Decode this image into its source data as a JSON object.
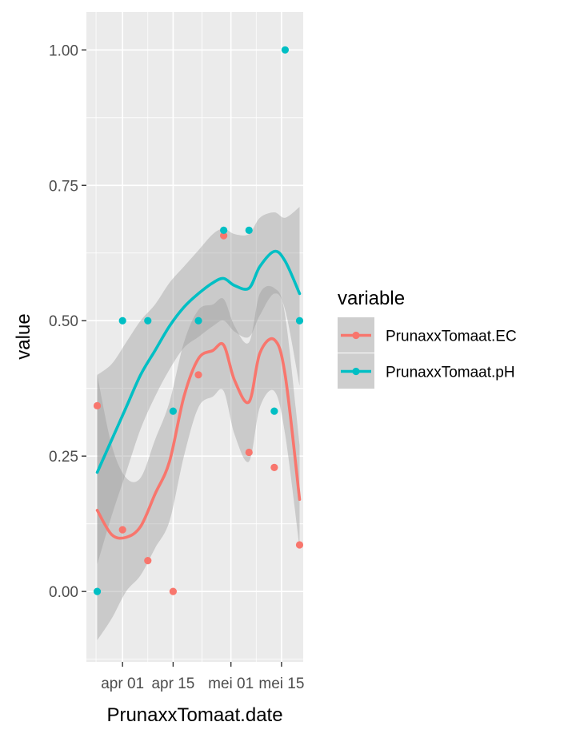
{
  "chart_data": {
    "type": "scatter",
    "xlabel": "PrunaxxTomaat.date",
    "ylabel": "value",
    "ylim": [
      -0.13,
      1.07
    ],
    "xlim": [
      "2025-03-22",
      "2025-05-21"
    ],
    "x_ticks": [
      {
        "date": "2025-04-01",
        "label": "apr 01"
      },
      {
        "date": "2025-04-15",
        "label": "apr 15"
      },
      {
        "date": "2025-05-01",
        "label": "mei 01"
      },
      {
        "date": "2025-05-15",
        "label": "mei 15"
      }
    ],
    "y_ticks": [
      {
        "value": 0.0,
        "label": "0.00"
      },
      {
        "value": 0.25,
        "label": "0.25"
      },
      {
        "value": 0.5,
        "label": "0.50"
      },
      {
        "value": 0.75,
        "label": "0.75"
      },
      {
        "value": 1.0,
        "label": "1.00"
      }
    ],
    "grid": true,
    "legend": {
      "title": "variable",
      "position": "right"
    },
    "series": [
      {
        "name": "PrunaxxTomaat.EC",
        "color": "#F8766D",
        "points": [
          {
            "date": "2025-03-25",
            "value": 0.343
          },
          {
            "date": "2025-04-01",
            "value": 0.114
          },
          {
            "date": "2025-04-08",
            "value": 0.057
          },
          {
            "date": "2025-04-15",
            "value": 0.0
          },
          {
            "date": "2025-04-22",
            "value": 0.4
          },
          {
            "date": "2025-04-29",
            "value": 0.657
          },
          {
            "date": "2025-05-06",
            "value": 0.257
          },
          {
            "date": "2025-05-13",
            "value": 0.229
          },
          {
            "date": "2025-05-20",
            "value": 0.086
          }
        ],
        "smooth": [
          {
            "date": "2025-03-25",
            "value": 0.15,
            "lower": -0.09,
            "upper": 0.4
          },
          {
            "date": "2025-03-29",
            "value": 0.105,
            "lower": -0.05,
            "upper": 0.27
          },
          {
            "date": "2025-04-02",
            "value": 0.1,
            "lower": 0.0,
            "upper": 0.21
          },
          {
            "date": "2025-04-06",
            "value": 0.12,
            "lower": 0.03,
            "upper": 0.21
          },
          {
            "date": "2025-04-10",
            "value": 0.18,
            "lower": 0.08,
            "upper": 0.28
          },
          {
            "date": "2025-04-14",
            "value": 0.24,
            "lower": 0.13,
            "upper": 0.35
          },
          {
            "date": "2025-04-18",
            "value": 0.36,
            "lower": 0.25,
            "upper": 0.46
          },
          {
            "date": "2025-04-22",
            "value": 0.43,
            "lower": 0.34,
            "upper": 0.52
          },
          {
            "date": "2025-04-26",
            "value": 0.445,
            "lower": 0.36,
            "upper": 0.53
          },
          {
            "date": "2025-04-29",
            "value": 0.455,
            "lower": 0.37,
            "upper": 0.54
          },
          {
            "date": "2025-05-02",
            "value": 0.39,
            "lower": 0.29,
            "upper": 0.49
          },
          {
            "date": "2025-05-06",
            "value": 0.35,
            "lower": 0.24,
            "upper": 0.46
          },
          {
            "date": "2025-05-09",
            "value": 0.44,
            "lower": 0.34,
            "upper": 0.55
          },
          {
            "date": "2025-05-13",
            "value": 0.465,
            "lower": 0.37,
            "upper": 0.56
          },
          {
            "date": "2025-05-16",
            "value": 0.4,
            "lower": 0.29,
            "upper": 0.51
          },
          {
            "date": "2025-05-20",
            "value": 0.17,
            "lower": 0.08,
            "upper": 0.27
          }
        ]
      },
      {
        "name": "PrunaxxTomaat.pH",
        "color": "#00BFC4",
        "points": [
          {
            "date": "2025-03-25",
            "value": 0.0
          },
          {
            "date": "2025-04-01",
            "value": 0.5
          },
          {
            "date": "2025-04-08",
            "value": 0.5
          },
          {
            "date": "2025-04-15",
            "value": 0.333
          },
          {
            "date": "2025-04-22",
            "value": 0.5
          },
          {
            "date": "2025-04-29",
            "value": 0.667
          },
          {
            "date": "2025-05-06",
            "value": 0.667
          },
          {
            "date": "2025-05-13",
            "value": 0.333
          },
          {
            "date": "2025-05-16",
            "value": 1.0
          },
          {
            "date": "2025-05-20",
            "value": 0.5
          }
        ],
        "smooth": [
          {
            "date": "2025-03-25",
            "value": 0.22,
            "lower": 0.05,
            "upper": 0.4
          },
          {
            "date": "2025-03-29",
            "value": 0.28,
            "lower": 0.14,
            "upper": 0.42
          },
          {
            "date": "2025-04-02",
            "value": 0.34,
            "lower": 0.22,
            "upper": 0.46
          },
          {
            "date": "2025-04-06",
            "value": 0.4,
            "lower": 0.3,
            "upper": 0.5
          },
          {
            "date": "2025-04-10",
            "value": 0.445,
            "lower": 0.36,
            "upper": 0.53
          },
          {
            "date": "2025-04-14",
            "value": 0.49,
            "lower": 0.41,
            "upper": 0.57
          },
          {
            "date": "2025-04-18",
            "value": 0.525,
            "lower": 0.45,
            "upper": 0.6
          },
          {
            "date": "2025-04-22",
            "value": 0.55,
            "lower": 0.47,
            "upper": 0.63
          },
          {
            "date": "2025-04-26",
            "value": 0.57,
            "lower": 0.49,
            "upper": 0.66
          },
          {
            "date": "2025-04-29",
            "value": 0.578,
            "lower": 0.5,
            "upper": 0.67
          },
          {
            "date": "2025-05-02",
            "value": 0.565,
            "lower": 0.48,
            "upper": 0.66
          },
          {
            "date": "2025-05-06",
            "value": 0.56,
            "lower": 0.47,
            "upper": 0.66
          },
          {
            "date": "2025-05-09",
            "value": 0.6,
            "lower": 0.51,
            "upper": 0.69
          },
          {
            "date": "2025-05-13",
            "value": 0.628,
            "lower": 0.55,
            "upper": 0.7
          },
          {
            "date": "2025-05-16",
            "value": 0.61,
            "lower": 0.52,
            "upper": 0.69
          },
          {
            "date": "2025-05-20",
            "value": 0.55,
            "lower": 0.38,
            "upper": 0.71
          }
        ]
      }
    ]
  }
}
